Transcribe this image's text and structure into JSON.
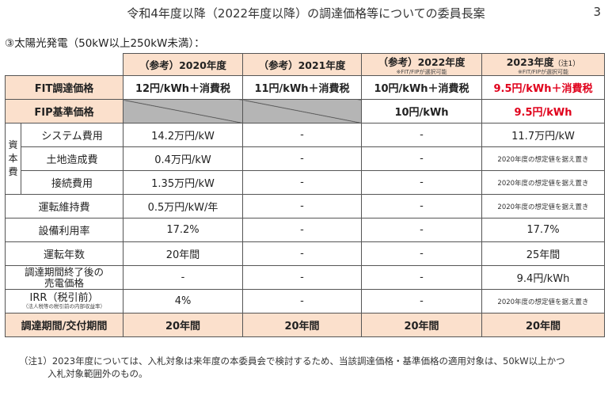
{
  "title": "令和4年度以降（2022年度以降）の調達価格等についての委員長案",
  "page_number": "3",
  "section_label": "③太陽光発電（50kW以上250kW未満）：",
  "columns": {
    "c2020": "（参考）2020年度",
    "c2021": "（参考）2021年度",
    "c2022": "（参考）2022年度",
    "c2022_sub": "※FIT/FIPが選択可能",
    "c2023": "2023年度",
    "c2023_note": "（注1）",
    "c2023_sub": "※FIT/FIPが選択可能"
  },
  "rows": {
    "fit": {
      "label": "FIT調達価格",
      "v2020": "12円/kWh＋消費税",
      "v2021": "11円/kWh＋消費税",
      "v2022": "10円/kWh＋消費税",
      "v2023": "9.5円/kWh＋消費税"
    },
    "fip": {
      "label": "FIP基準価格",
      "v2022": "10円/kWh",
      "v2023": "9.5円/kWh"
    },
    "capital_group_label": "資本費",
    "system": {
      "label": "システム費用",
      "v2020": "14.2万円/kW",
      "v2021": "-",
      "v2022": "-",
      "v2023": "11.7万円/kW"
    },
    "land": {
      "label": "土地造成費",
      "v2020": "0.4万円/kW",
      "v2021": "-",
      "v2022": "-",
      "v2023": "2020年度の想定値を据え置き"
    },
    "connect": {
      "label": "接続費用",
      "v2020": "1.35万円/kW",
      "v2021": "-",
      "v2022": "-",
      "v2023": "2020年度の想定値を据え置き"
    },
    "maintenance": {
      "label": "運転維持費",
      "v2020": "0.5万円/kW/年",
      "v2021": "-",
      "v2022": "-",
      "v2023": "2020年度の想定値を据え置き"
    },
    "utilization": {
      "label": "設備利用率",
      "v2020": "17.2%",
      "v2021": "-",
      "v2022": "-",
      "v2023": "17.7%"
    },
    "years": {
      "label": "運転年数",
      "v2020": "20年間",
      "v2021": "-",
      "v2022": "-",
      "v2023": "25年間"
    },
    "post_price": {
      "label_line1": "調達期間終了後の",
      "label_line2": "売電価格",
      "v2020": "-",
      "v2021": "-",
      "v2022": "-",
      "v2023": "9.4円/kWh"
    },
    "irr": {
      "label": "IRR（税引前）",
      "label_sub": "（法人税等の税引前の内部収益率）",
      "v2020": "4%",
      "v2021": "-",
      "v2022": "-",
      "v2023": "2020年度の想定値を据え置き"
    },
    "period": {
      "label": "調達期間/交付期間",
      "v2020": "20年間",
      "v2021": "20年間",
      "v2022": "20年間",
      "v2023": "20年間"
    }
  },
  "footnote": {
    "line1": "（注1）2023年度については、入札対象は来年度の本委員会で検討するため、当該調達価格・基準価格の適用対象は、50kW以上かつ",
    "line2": "入札対象範囲外のもの。"
  }
}
